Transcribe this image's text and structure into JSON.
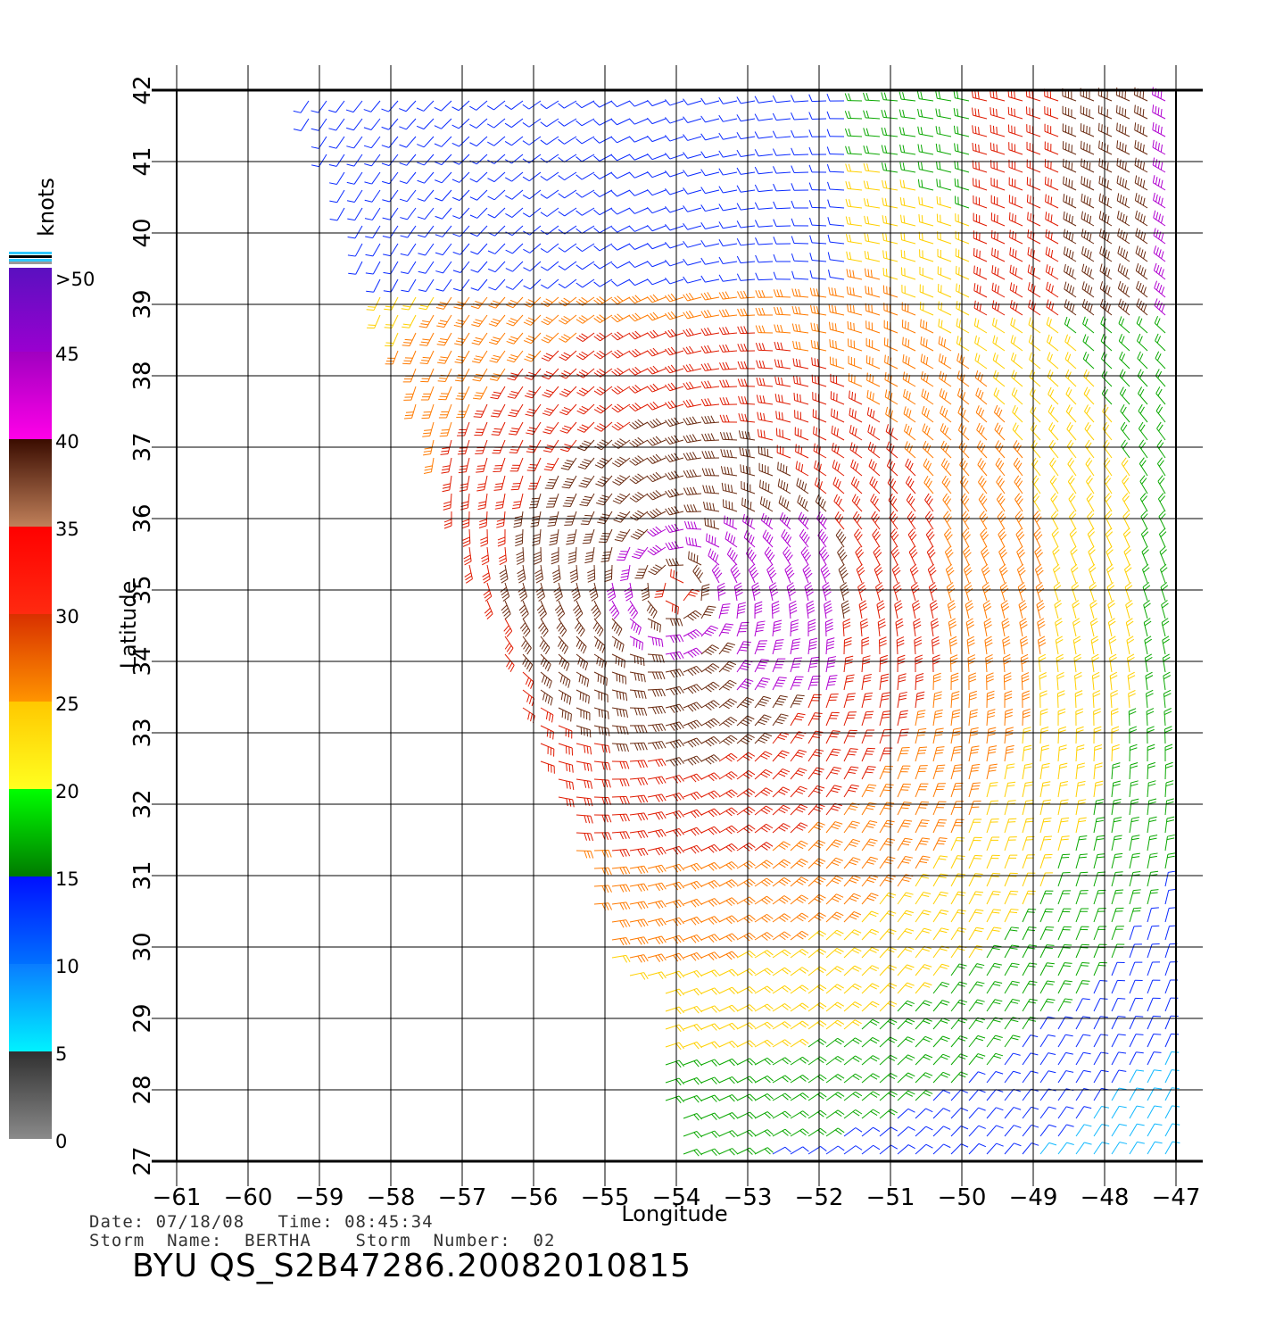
{
  "map": {
    "lon_range": [
      -61,
      -47
    ],
    "lat_range": [
      27,
      42
    ],
    "lon_ticks": [
      "−61",
      "−60",
      "−59",
      "−58",
      "−57",
      "−56",
      "−55",
      "−54",
      "−53",
      "−52",
      "−51",
      "−50",
      "−49",
      "−48",
      "−47"
    ],
    "lat_ticks": [
      "27",
      "28",
      "29",
      "30",
      "31",
      "32",
      "33",
      "34",
      "35",
      "36",
      "37",
      "38",
      "39",
      "40",
      "41",
      "42"
    ],
    "xlabel": "Longitude",
    "ylabel": "Latitude",
    "grid": true,
    "storm_center": {
      "lon": -54.0,
      "lat": 35.0
    },
    "layer": "scatterometer wind barbs, colored by speed"
  },
  "colorbar": {
    "units": "knots",
    "labels": [
      "0",
      "5",
      "10",
      "15",
      "20",
      "25",
      "30",
      "35",
      "40",
      "45",
      ">50"
    ],
    "bands": [
      {
        "from": 0,
        "to": 5,
        "top": "#303030",
        "bottom": "#8a8a8a"
      },
      {
        "from": 5,
        "to": 10,
        "top": "#0a7cff",
        "bottom": "#00f2ff"
      },
      {
        "from": 10,
        "to": 15,
        "top": "#0010ff",
        "bottom": "#0070ff"
      },
      {
        "from": 15,
        "to": 20,
        "top": "#00ff00",
        "bottom": "#007a00"
      },
      {
        "from": 20,
        "to": 25,
        "top": "#ffc800",
        "bottom": "#ffff20"
      },
      {
        "from": 25,
        "to": 30,
        "top": "#d83000",
        "bottom": "#ff9400"
      },
      {
        "from": 30,
        "to": 35,
        "top": "#ff0000",
        "bottom": "#ff2a10"
      },
      {
        "from": 35,
        "to": 40,
        "top": "#3a0c00",
        "bottom": "#c0805a"
      },
      {
        "from": 40,
        "to": 45,
        "top": "#a000c0",
        "bottom": "#ff00e8"
      },
      {
        "from": 45,
        "to": 50,
        "top": "#5a10c0",
        "bottom": "#9a00d0"
      }
    ]
  },
  "footer": {
    "date_line": "Date: 07/18/08   Time: 08:45:34",
    "storm_line": "Storm  Name:  BERTHA    Storm  Number:  02",
    "product": "BYU  QS_S2B47286.20082010815"
  }
}
